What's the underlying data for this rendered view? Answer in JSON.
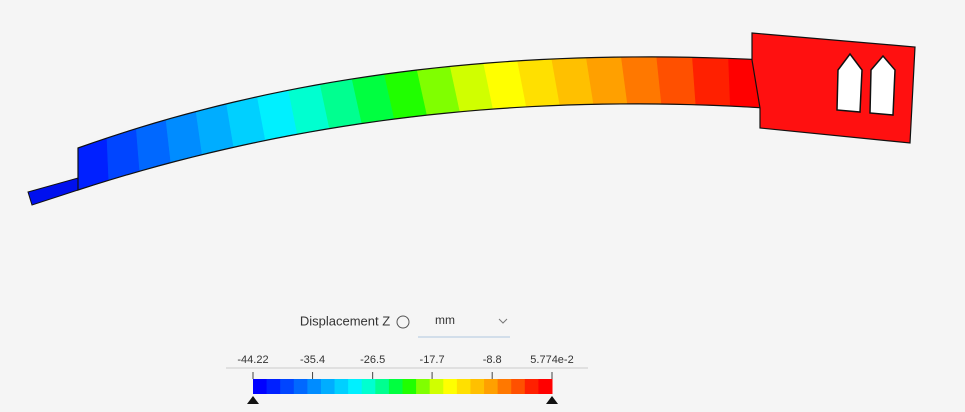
{
  "legend": {
    "title": "Displacement Z",
    "unit": "mm",
    "ticks": [
      -44.22,
      -35.4,
      -26.5,
      -17.7,
      -8.8,
      {
        "value": 0.05774,
        "label": "5.774e-2"
      }
    ],
    "colors": [
      "#0000ff",
      "#0020ff",
      "#0045ff",
      "#0068ff",
      "#008cff",
      "#00adff",
      "#00d0ff",
      "#00f0ff",
      "#00ffd0",
      "#00ff90",
      "#00ff40",
      "#20ff00",
      "#80ff00",
      "#d0ff00",
      "#ffff00",
      "#ffe000",
      "#ffc000",
      "#ffa000",
      "#ff7800",
      "#ff5000",
      "#ff2000",
      "#ff0000"
    ]
  }
}
